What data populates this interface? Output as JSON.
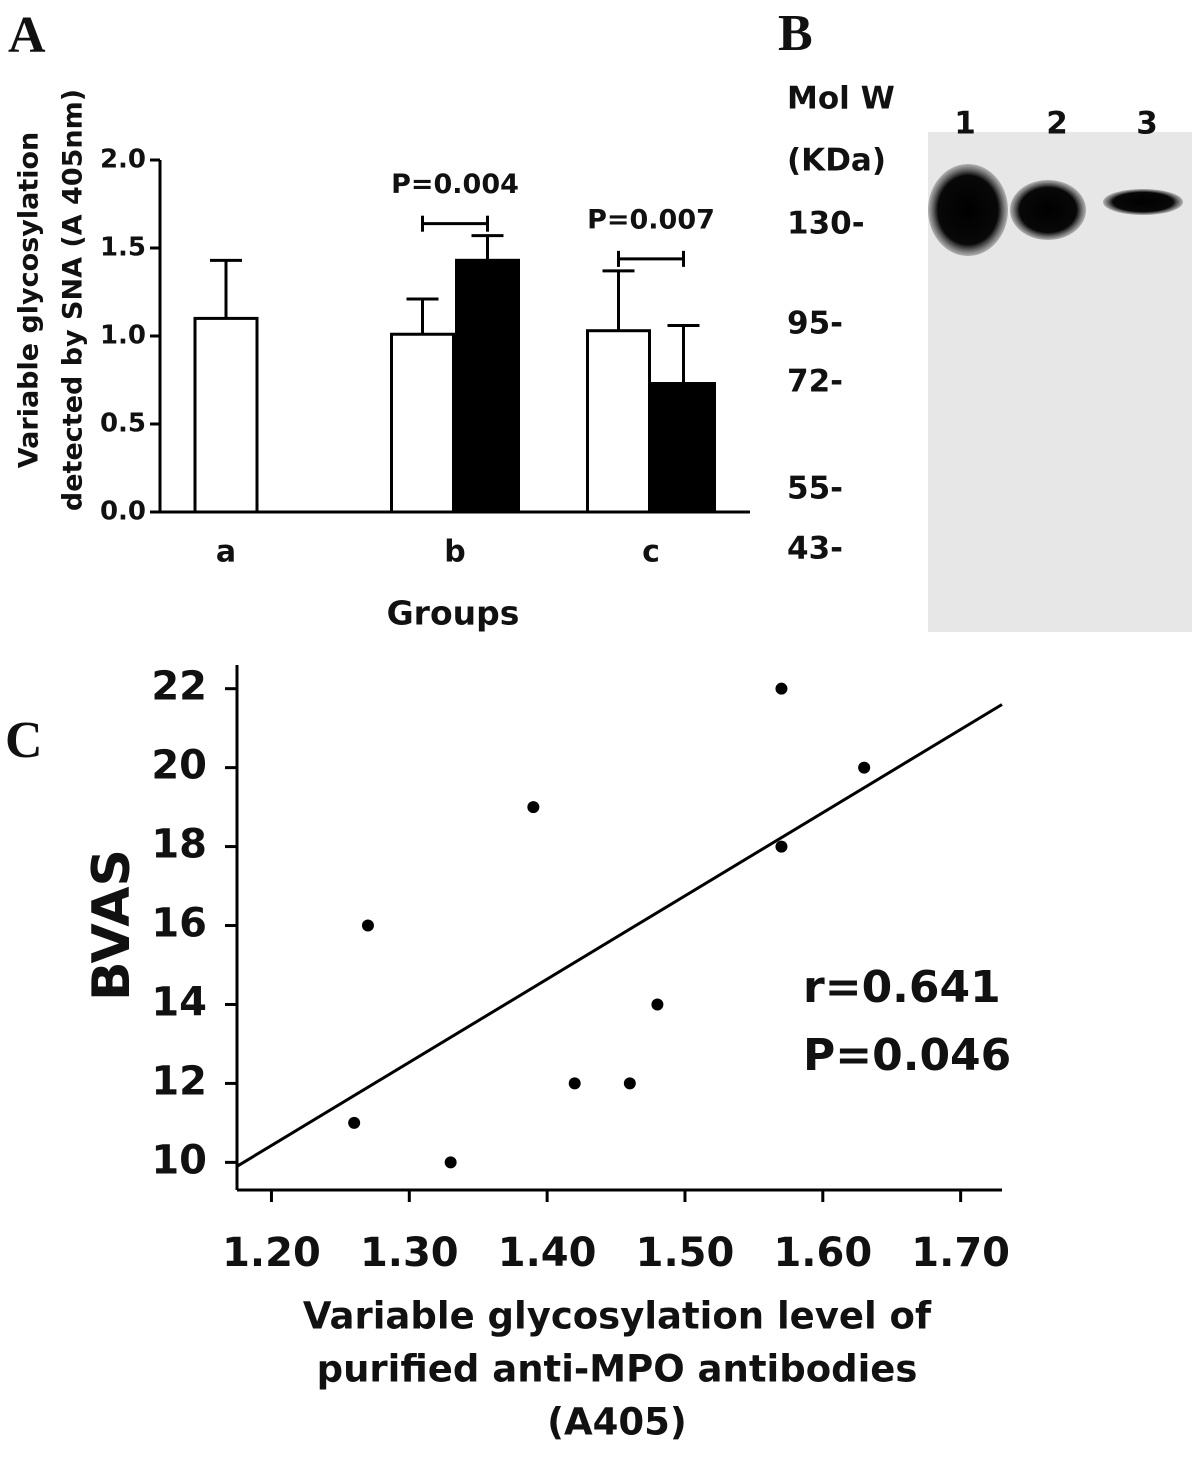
{
  "panel_labels": [
    "A",
    "B",
    "C"
  ],
  "chart_data": [
    {
      "type": "bar",
      "categories": [
        "a",
        "b",
        "c"
      ],
      "series": [
        {
          "color": "#ffffff",
          "values": [
            1.1,
            1.01,
            1.03
          ],
          "errors": [
            0.33,
            0.2,
            0.34
          ]
        },
        {
          "color": "#000000",
          "values": [
            null,
            1.43,
            0.73
          ],
          "errors": [
            null,
            0.14,
            0.33
          ]
        }
      ],
      "annotations": [
        null,
        "P=0.004",
        "P=0.007"
      ],
      "xlabel": "Groups",
      "ylabel": [
        "Variable glycosylation",
        "detected by SNA (A 405nm)"
      ],
      "ylim": [
        0,
        2
      ],
      "yticks": [
        {
          "value": 0,
          "label": "0.0"
        },
        {
          "value": 0.5,
          "label": "0.5"
        },
        {
          "value": 1,
          "label": "1.0"
        },
        {
          "value": 1.5,
          "label": "1.5"
        },
        {
          "value": 2,
          "label": "2.0"
        }
      ]
    },
    {
      "type": "scatter",
      "x": [
        1.26,
        1.27,
        1.33,
        1.39,
        1.42,
        1.46,
        1.48,
        1.57,
        1.57,
        1.63
      ],
      "values": [
        11,
        16,
        10,
        19,
        12,
        12,
        14,
        22,
        18,
        20
      ],
      "color": "#000000",
      "trendline": {
        "x": [
          1.175,
          1.73
        ],
        "y": [
          9.9,
          21.6
        ]
      },
      "annotations": [
        "r=0.641",
        "P=0.046"
      ],
      "xlabel": [
        "Variable glycosylation level of",
        "purified anti-MPO antibodies",
        "(A405)"
      ],
      "ylabel": "BVAS",
      "xlim": [
        1.175,
        1.73
      ],
      "ylim": [
        9.3,
        22.6
      ],
      "xticks": [
        {
          "value": 1.2,
          "label": "1.20"
        },
        {
          "value": 1.3,
          "label": "1.30"
        },
        {
          "value": 1.4,
          "label": "1.40"
        },
        {
          "value": 1.5,
          "label": "1.50"
        },
        {
          "value": 1.6,
          "label": "1.60"
        },
        {
          "value": 1.7,
          "label": "1.70"
        }
      ],
      "yticks": [
        10,
        12,
        14,
        16,
        18,
        20,
        22
      ]
    }
  ],
  "blot": {
    "header": [
      "Mol W",
      "(KDa)"
    ],
    "markers": [
      "130-",
      "95-",
      "72-",
      "55-",
      "43-"
    ],
    "lanes": [
      "1",
      "2",
      "3"
    ]
  }
}
